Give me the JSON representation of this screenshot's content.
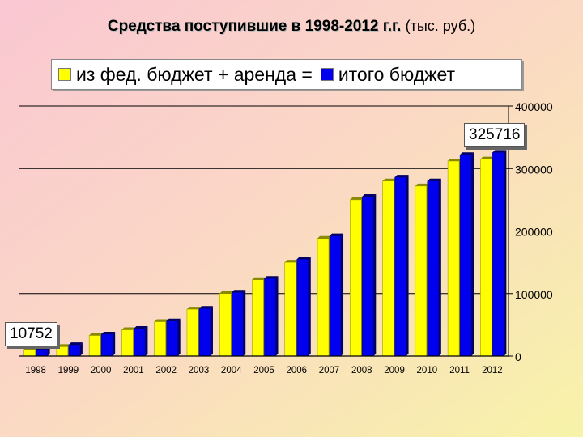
{
  "title": {
    "main": "Средства поступившие в 1998-2012 г.г.",
    "units": "(тыс. руб.)"
  },
  "legend": {
    "item1": "из фед. бюджет + аренда =",
    "item2": "итого бюджет"
  },
  "colors": {
    "series1": "#ffff00",
    "series2": "#0000ee"
  },
  "chart_data": {
    "type": "bar",
    "title": "Средства поступившие в 1998-2012 г.г. (тыс. руб.)",
    "categories": [
      "1998",
      "1999",
      "2000",
      "2001",
      "2002",
      "2003",
      "2004",
      "2005",
      "2006",
      "2007",
      "2008",
      "2009",
      "2010",
      "2011",
      "2012"
    ],
    "series": [
      {
        "name": "из фед. бюджет + аренда =",
        "color": "#ffff00",
        "values": [
          10752,
          15000,
          33000,
          42000,
          55000,
          75000,
          100000,
          122000,
          150000,
          188000,
          250000,
          280000,
          272000,
          312000,
          315000
        ]
      },
      {
        "name": "итого бюджет",
        "color": "#0000ee",
        "values": [
          11000,
          18000,
          35000,
          44000,
          56000,
          76000,
          102000,
          124000,
          155000,
          192000,
          255000,
          286000,
          280000,
          322000,
          325716
        ]
      }
    ],
    "yticks": [
      0,
      100000,
      200000,
      300000,
      400000
    ],
    "ylim": [
      0,
      400000
    ],
    "grid": true,
    "legend_position": "top",
    "annotations": [
      "10752",
      "325716"
    ]
  }
}
